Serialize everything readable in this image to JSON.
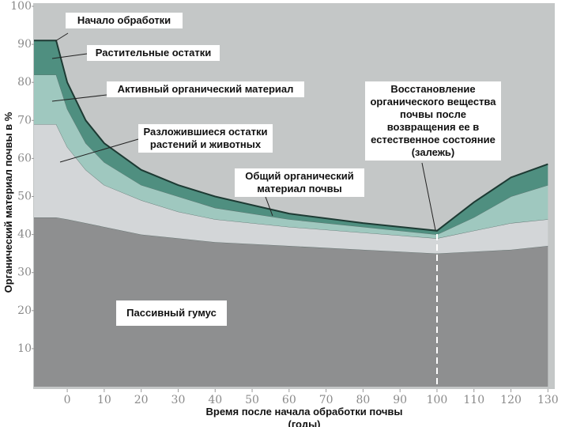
{
  "chart_data": {
    "type": "stacked-area",
    "x_label": "Время после начала обработки почвы (годы)",
    "y_label": "Органический материал почвы в %",
    "x": [
      -9,
      -3,
      0,
      5,
      10,
      20,
      30,
      40,
      60,
      80,
      100,
      110,
      120,
      130
    ],
    "series": [
      {
        "name": "Пассивный гумус",
        "color": "#8e8f90",
        "values": [
          44.5,
          44.5,
          44,
          43,
          42,
          40,
          39,
          38,
          37,
          36,
          35,
          35.5,
          36,
          37
        ]
      },
      {
        "name": "Разложившиеся остатки растений и животных",
        "color": "#d3d6d8",
        "values": [
          24.5,
          24.5,
          19,
          14,
          11,
          9,
          7,
          6,
          5,
          4.5,
          4,
          5.5,
          7,
          7
        ]
      },
      {
        "name": "Активный органический материал",
        "color": "#9fc8bf",
        "values": [
          13,
          13,
          10,
          7,
          6,
          4,
          4,
          3,
          2,
          1.5,
          1,
          3.5,
          7,
          9
        ]
      },
      {
        "name": "Растительные остатки",
        "color": "#4f8f80",
        "values": [
          9,
          9,
          7,
          6,
          5,
          4,
          3,
          3,
          1.5,
          1,
          1,
          4,
          5,
          5.5
        ]
      }
    ],
    "annotations": [
      "Начало обработки",
      "Общий органический материал почвы",
      "Восстановление органического вещества почвы после возвращения ее в естественное состояние (залежь)"
    ],
    "xlim": [
      -9,
      131
    ],
    "ylim": [
      0,
      100
    ],
    "xticks": [
      0,
      10,
      20,
      30,
      40,
      50,
      60,
      70,
      80,
      90,
      100,
      110,
      120,
      130
    ],
    "yticks": [
      10,
      20,
      30,
      40,
      50,
      60,
      70,
      80,
      90,
      100
    ],
    "grid": false
  }
}
